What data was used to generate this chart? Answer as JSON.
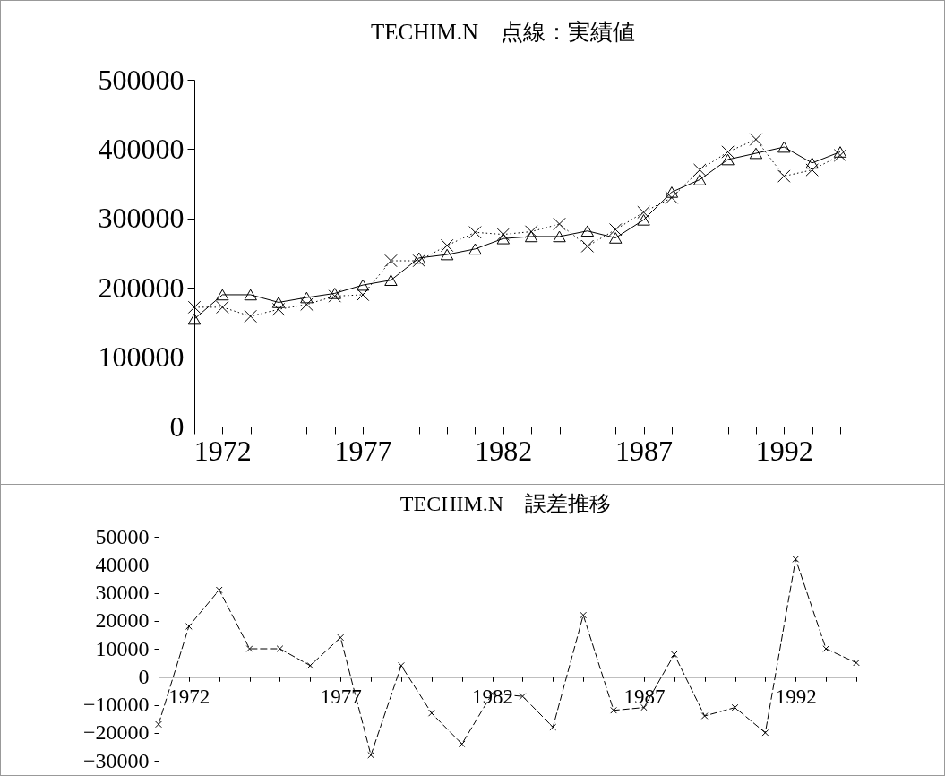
{
  "chart_data": [
    {
      "type": "line",
      "title": "TECHIM.N　点線：実績値",
      "x": [
        1971,
        1972,
        1973,
        1974,
        1975,
        1976,
        1977,
        1978,
        1979,
        1980,
        1981,
        1982,
        1983,
        1984,
        1985,
        1986,
        1987,
        1988,
        1989,
        1990,
        1991,
        1992,
        1993,
        1994
      ],
      "series": [
        {
          "color": "#000000",
          "marker": "triangle",
          "line_style": "solid",
          "values": [
            155000,
            190000,
            190000,
            179000,
            186000,
            192000,
            204000,
            211000,
            243000,
            248000,
            256000,
            271000,
            274000,
            274000,
            282000,
            272000,
            298000,
            338000,
            356000,
            385000,
            394000,
            403000,
            380000,
            396000
          ]
        },
        {
          "color": "#000000",
          "marker": "cross",
          "line_style": "dotted",
          "values": [
            172000,
            172000,
            159000,
            169000,
            176000,
            188000,
            190000,
            239000,
            239000,
            261000,
            280000,
            277000,
            281000,
            292000,
            260000,
            284000,
            309000,
            330000,
            370000,
            396000,
            414000,
            361000,
            370000,
            391000
          ]
        }
      ],
      "xlim": [
        1971,
        1994
      ],
      "xticks": [
        {
          "value": 1971,
          "label": null
        },
        1972,
        {
          "value": 1973,
          "label": null
        },
        {
          "value": 1974,
          "label": null
        },
        {
          "value": 1975,
          "label": null
        },
        {
          "value": 1976,
          "label": null
        },
        1977,
        {
          "value": 1978,
          "label": null
        },
        {
          "value": 1979,
          "label": null
        },
        {
          "value": 1980,
          "label": null
        },
        {
          "value": 1981,
          "label": null
        },
        1982,
        {
          "value": 1983,
          "label": null
        },
        {
          "value": 1984,
          "label": null
        },
        {
          "value": 1985,
          "label": null
        },
        {
          "value": 1986,
          "label": null
        },
        1987,
        {
          "value": 1988,
          "label": null
        },
        {
          "value": 1989,
          "label": null
        },
        {
          "value": 1990,
          "label": null
        },
        {
          "value": 1991,
          "label": null
        },
        1992,
        {
          "value": 1993,
          "label": null
        },
        {
          "value": 1994,
          "label": null
        }
      ],
      "ylim": [
        0,
        500000
      ],
      "yticks": [
        0,
        100000,
        200000,
        300000,
        400000,
        500000
      ]
    },
    {
      "type": "line",
      "title": "TECHIM.N　誤差推移",
      "x": [
        1971,
        1972,
        1973,
        1974,
        1975,
        1976,
        1977,
        1978,
        1979,
        1980,
        1981,
        1982,
        1983,
        1984,
        1985,
        1986,
        1987,
        1988,
        1989,
        1990,
        1991,
        1992,
        1993,
        1994
      ],
      "series": [
        {
          "color": "#000000",
          "marker": "cross",
          "line_style": "dashed",
          "values": [
            -17000,
            18000,
            31000,
            10000,
            10000,
            4000,
            14000,
            -28000,
            4000,
            -13000,
            -24000,
            -6000,
            -7000,
            -18000,
            22000,
            -12000,
            -11000,
            8000,
            -14000,
            -11000,
            -20000,
            42000,
            10000,
            5000
          ]
        }
      ],
      "xlim": [
        1971,
        1994
      ],
      "xticks": [
        {
          "value": 1971,
          "label": null
        },
        1972,
        {
          "value": 1973,
          "label": null
        },
        {
          "value": 1974,
          "label": null
        },
        {
          "value": 1975,
          "label": null
        },
        {
          "value": 1976,
          "label": null
        },
        1977,
        {
          "value": 1978,
          "label": null
        },
        {
          "value": 1979,
          "label": null
        },
        {
          "value": 1980,
          "label": null
        },
        {
          "value": 1981,
          "label": null
        },
        1982,
        {
          "value": 1983,
          "label": null
        },
        {
          "value": 1984,
          "label": null
        },
        {
          "value": 1985,
          "label": null
        },
        {
          "value": 1986,
          "label": null
        },
        1987,
        {
          "value": 1988,
          "label": null
        },
        {
          "value": 1989,
          "label": null
        },
        {
          "value": 1990,
          "label": null
        },
        {
          "value": 1991,
          "label": null
        },
        1992,
        {
          "value": 1993,
          "label": null
        },
        {
          "value": 1994,
          "label": null
        }
      ],
      "ylim": [
        -30000,
        50000
      ],
      "yticks": [
        -30000,
        -20000,
        -10000,
        0,
        10000,
        20000,
        30000,
        40000,
        50000
      ]
    }
  ]
}
